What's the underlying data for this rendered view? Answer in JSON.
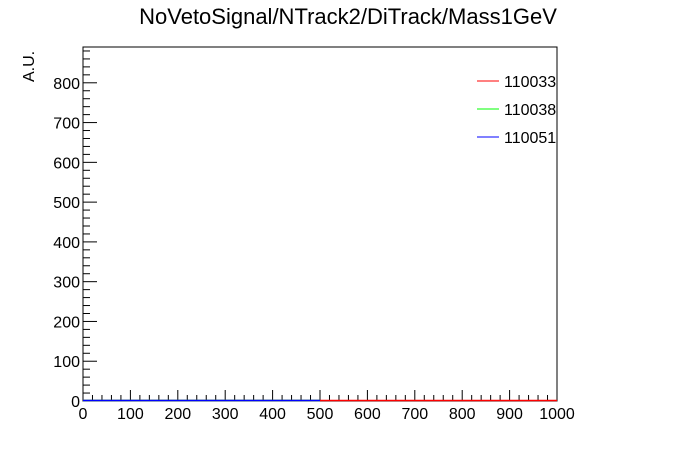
{
  "chart_data": {
    "type": "line",
    "title": "NoVetoSignal/NTrack2/DiTrack/Mass1GeV",
    "xlabel": "",
    "ylabel": "A.U.",
    "xlim": [
      0,
      1000
    ],
    "ylim": [
      0,
      890
    ],
    "x_ticks": [
      0,
      100,
      200,
      300,
      400,
      500,
      600,
      700,
      800,
      900,
      1000
    ],
    "y_ticks": [
      0,
      100,
      200,
      300,
      400,
      500,
      600,
      700,
      800
    ],
    "x_minor_step": 20,
    "y_minor_step": 20,
    "grid": false,
    "legend_position": "top-right",
    "series": [
      {
        "name": "110033",
        "color": "#ff0000",
        "x": [
          0,
          1000
        ],
        "values": [
          0,
          0
        ]
      },
      {
        "name": "110038",
        "color": "#00ff00",
        "x": [
          0,
          500
        ],
        "values": [
          0,
          0
        ]
      },
      {
        "name": "110051",
        "color": "#0000ff",
        "x": [
          0,
          500
        ],
        "values": [
          0,
          0
        ]
      }
    ]
  }
}
